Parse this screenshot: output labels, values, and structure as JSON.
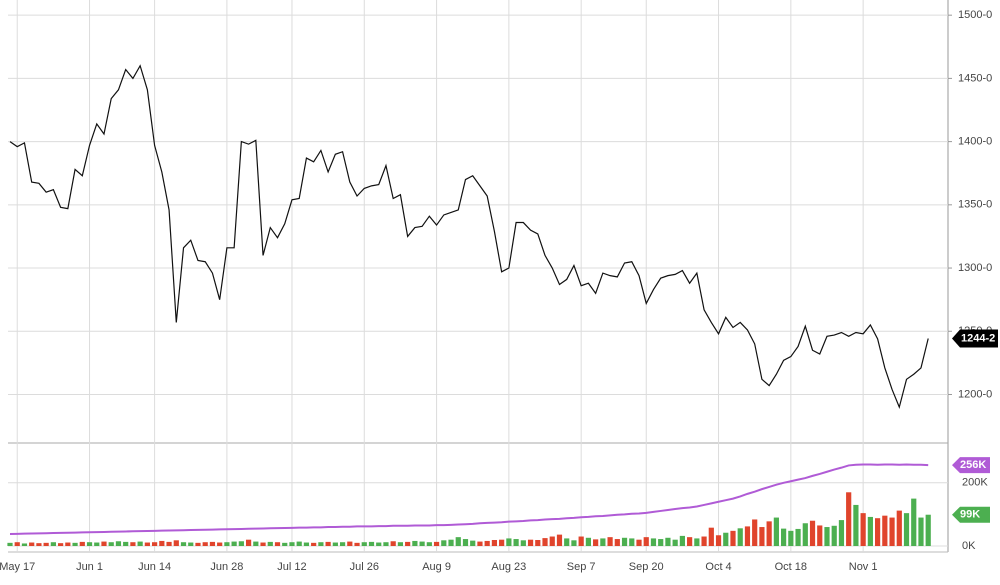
{
  "chart_data": [
    {
      "type": "line",
      "color": "#111111",
      "categories": [
        null,
        "May 17",
        null,
        null,
        null,
        null,
        null,
        null,
        null,
        null,
        null,
        "Jun 1",
        null,
        null,
        null,
        null,
        null,
        null,
        null,
        null,
        "Jun 14",
        null,
        null,
        null,
        null,
        null,
        null,
        null,
        null,
        null,
        "Jun 28",
        null,
        null,
        null,
        null,
        null,
        null,
        null,
        null,
        "Jul 12",
        null,
        null,
        null,
        null,
        null,
        null,
        null,
        null,
        null,
        "Jul 26",
        null,
        null,
        null,
        null,
        null,
        null,
        null,
        null,
        null,
        "Aug 9",
        null,
        null,
        null,
        null,
        null,
        null,
        null,
        null,
        null,
        "Aug 23",
        null,
        null,
        null,
        null,
        null,
        null,
        null,
        null,
        null,
        "Sep 7",
        null,
        null,
        null,
        null,
        null,
        null,
        null,
        null,
        "Sep 20",
        null,
        null,
        null,
        null,
        null,
        null,
        null,
        null,
        null,
        "Oct 4",
        null,
        null,
        null,
        null,
        null,
        null,
        null,
        null,
        null,
        "Oct 18",
        null,
        null,
        null,
        null,
        null,
        null,
        null,
        null,
        null,
        "Nov 1",
        null,
        null,
        null,
        null,
        null,
        null,
        null,
        null,
        null
      ],
      "values": [
        1400,
        1396,
        1399,
        1368,
        1367,
        1360,
        1362,
        1348,
        1347,
        1378,
        1373,
        1397,
        1414,
        1406,
        1434,
        1441,
        1457,
        1450,
        1460,
        1441,
        1397,
        1376,
        1346,
        1257,
        1316,
        1322,
        1306,
        1305,
        1296,
        1275,
        1316,
        1316,
        1400,
        1398,
        1401,
        1310,
        1332,
        1324,
        1335,
        1354,
        1355,
        1387,
        1384,
        1393,
        1376,
        1390,
        1392,
        1368,
        1357,
        1363,
        1365,
        1366,
        1381,
        1355,
        1358,
        1325,
        1332,
        1333,
        1341,
        1334,
        1342,
        1344,
        1346,
        1370,
        1373,
        1365,
        1357,
        1329,
        1297,
        1300,
        1336,
        1336,
        1330,
        1327,
        1310,
        1300,
        1287,
        1291,
        1302,
        1286,
        1288,
        1280,
        1296,
        1294,
        1293,
        1304,
        1305,
        1294,
        1272,
        1283,
        1292,
        1294,
        1295,
        1298,
        1288,
        1296,
        1267,
        1257,
        1248,
        1261,
        1253,
        1257,
        1251,
        1240,
        1212,
        1207,
        1216,
        1227,
        1230,
        1238,
        1254,
        1235,
        1232,
        1246,
        1247,
        1249,
        1246,
        1249,
        1248,
        1255,
        1244,
        1221,
        1204,
        1190,
        1212,
        1216,
        1221,
        1244.25
      ],
      "last_label": "1244-2",
      "ylim": [
        1164,
        1512
      ],
      "yticks": [
        {
          "value": 1200,
          "label": "1200-0"
        },
        {
          "value": 1250,
          "label": "1250-0"
        },
        {
          "value": 1300,
          "label": "1300-0"
        },
        {
          "value": 1350,
          "label": "1350-0"
        },
        {
          "value": 1400,
          "label": "1400-0"
        },
        {
          "value": 1450,
          "label": "1450-0"
        },
        {
          "value": 1500,
          "label": "1500-0"
        }
      ],
      "grid": true
    },
    {
      "type": "bar",
      "up_color": "#4caf50",
      "down_color": "#e0442c",
      "values": [
        10,
        12,
        8,
        11,
        9,
        10,
        12,
        9,
        11,
        10,
        13,
        12,
        11,
        14,
        12,
        15,
        13,
        12,
        14,
        11,
        12,
        16,
        13,
        18,
        12,
        11,
        10,
        12,
        13,
        11,
        12,
        14,
        15,
        20,
        14,
        11,
        13,
        12,
        10,
        12,
        14,
        11,
        10,
        12,
        13,
        11,
        12,
        14,
        10,
        12,
        13,
        11,
        12,
        15,
        12,
        13,
        16,
        14,
        12,
        13,
        18,
        20,
        28,
        22,
        17,
        14,
        16,
        19,
        20,
        24,
        22,
        18,
        20,
        19,
        25,
        30,
        36,
        24,
        18,
        30,
        26,
        21,
        24,
        28,
        22,
        26,
        24,
        20,
        28,
        24,
        22,
        26,
        20,
        32,
        28,
        24,
        30,
        58,
        34,
        42,
        48,
        56,
        62,
        84,
        60,
        78,
        90,
        55,
        48,
        54,
        72,
        80,
        65,
        60,
        64,
        82,
        170,
        130,
        104,
        92,
        88,
        96,
        90,
        112,
        104,
        150,
        90,
        99
      ],
      "last_label": "99K",
      "line": {
        "color": "#b05bd6",
        "last_label": "256K",
        "values": [
          38,
          38.5,
          39,
          39.5,
          40,
          40.5,
          41,
          41.5,
          42,
          42.5,
          43,
          43.5,
          44,
          44.5,
          45,
          45.5,
          46,
          46.5,
          47,
          47.5,
          48,
          48.5,
          49,
          49.5,
          50,
          50.5,
          51,
          51.5,
          52,
          52.5,
          53,
          53.5,
          54,
          54.5,
          55,
          55.5,
          56,
          56.5,
          57,
          57.5,
          58,
          58,
          59,
          59,
          60,
          60,
          61,
          61,
          62,
          62,
          62,
          63,
          63,
          64,
          64,
          64,
          65,
          65,
          65,
          66,
          66,
          67,
          68,
          69,
          70,
          72,
          73,
          74,
          75,
          77,
          78,
          79,
          81,
          82,
          84,
          85,
          86,
          88,
          89,
          91,
          92,
          94,
          95,
          97,
          99,
          100,
          102,
          103,
          105,
          108,
          111,
          114,
          117,
          120,
          122,
          125,
          130,
          135,
          140,
          145,
          150,
          157,
          165,
          172,
          180,
          187,
          194,
          200,
          205,
          210,
          215,
          222,
          228,
          235,
          242,
          248,
          255,
          257,
          258,
          258,
          257,
          258,
          258,
          257,
          258,
          257,
          257,
          256
        ]
      },
      "ylim": [
        0,
        326
      ],
      "yticks": [
        {
          "value": 0,
          "label": "0K"
        },
        {
          "value": 200,
          "label": "200K"
        }
      ],
      "grid": true
    }
  ]
}
